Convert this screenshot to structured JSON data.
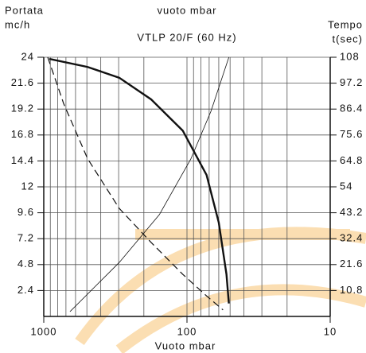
{
  "chart_data": {
    "type": "line",
    "title": "VTLP 20/F (60 Hz)",
    "top_axis_label": "vuoto mbar",
    "xlabel": "Vuoto mbar",
    "ylabel": [
      "Portata",
      "mc/h"
    ],
    "y2label": [
      "Tempo",
      "t(sec)"
    ],
    "xscale": "log",
    "xlim": [
      1000,
      10
    ],
    "xticks": [
      1000,
      100,
      10
    ],
    "ylim": [
      0,
      24
    ],
    "yticks": [
      2.4,
      4.8,
      7.2,
      9.6,
      12,
      14.4,
      16.8,
      19.2,
      21.6,
      24
    ],
    "y2lim": [
      0,
      108
    ],
    "y2ticks": [
      10.8,
      21.6,
      32.4,
      43.2,
      54,
      64.8,
      75.6,
      86.4,
      97.2,
      108
    ],
    "grid": true,
    "series": [
      {
        "color": "#111111",
        "style": "thick",
        "x": [
          914,
          494,
          297,
          178,
          107,
          73,
          60,
          53,
          51
        ],
        "values": [
          23.85,
          23.1,
          22.1,
          20.1,
          17.2,
          13.1,
          8.7,
          3.9,
          1.2
        ]
      },
      {
        "color": "#111111",
        "style": "dashed",
        "x": [
          938,
          726,
          494,
          297,
          178,
          107,
          73,
          56
        ],
        "values": [
          24,
          19.7,
          14.6,
          10.0,
          6.85,
          3.9,
          1.9,
          0.6
        ]
      },
      {
        "color": "#111111",
        "style": "thin",
        "axis": "y2",
        "x": [
          656,
          297,
          156,
          94,
          68,
          51
        ],
        "values": [
          2.0,
          22.5,
          42.4,
          65.6,
          85.5,
          108
        ]
      }
    ]
  }
}
